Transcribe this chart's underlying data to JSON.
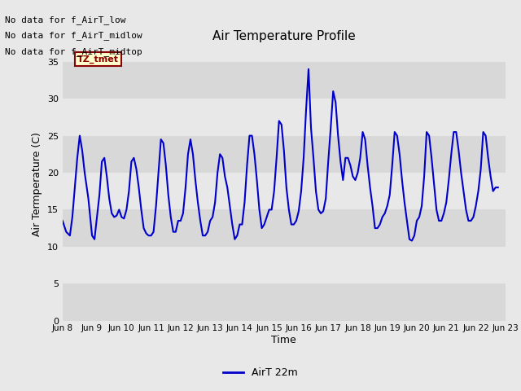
{
  "title": "Air Temperature Profile",
  "xlabel": "Time",
  "ylabel": "Air Termperature (C)",
  "ylim": [
    0,
    37
  ],
  "yticks": [
    0,
    5,
    10,
    15,
    20,
    25,
    30,
    35
  ],
  "line_color": "#0000cc",
  "line_width": 1.5,
  "fig_bg_color": "#e8e8e8",
  "plot_bg_color": "#e8e8e8",
  "band_colors": [
    "#d8d8d8",
    "#e8e8e8"
  ],
  "legend_label": "AirT 22m",
  "no_data_texts": [
    "No data for f_AirT_low",
    "No data for f_AirT_midlow",
    "No data for f_AirT_midtop"
  ],
  "tz_label": "TZ_tmet",
  "x_tick_labels": [
    "Jun 8",
    "Jun 9",
    "Jun 10",
    "Jun 11",
    "Jun 12",
    "Jun 13",
    "Jun 14",
    "Jun 15",
    "Jun 16",
    "Jun 17",
    "Jun 18",
    "Jun 19",
    "Jun 20",
    "Jun 21",
    "Jun 22",
    "Jun 23"
  ],
  "time_data": [
    0.0,
    0.125,
    0.25,
    0.333,
    0.417,
    0.5,
    0.583,
    0.667,
    0.75,
    0.875,
    1.0,
    1.083,
    1.167,
    1.25,
    1.333,
    1.417,
    1.5,
    1.583,
    1.667,
    1.75,
    1.833,
    1.917,
    2.0,
    2.083,
    2.167,
    2.25,
    2.333,
    2.417,
    2.5,
    2.583,
    2.667,
    2.75,
    2.833,
    2.917,
    3.0,
    3.083,
    3.167,
    3.25,
    3.333,
    3.417,
    3.5,
    3.583,
    3.667,
    3.75,
    3.833,
    3.917,
    4.0,
    4.083,
    4.167,
    4.25,
    4.333,
    4.417,
    4.5,
    4.583,
    4.667,
    4.75,
    4.833,
    4.917,
    5.0,
    5.083,
    5.167,
    5.25,
    5.333,
    5.417,
    5.5,
    5.583,
    5.667,
    5.75,
    5.833,
    5.917,
    6.0,
    6.083,
    6.167,
    6.25,
    6.333,
    6.417,
    6.5,
    6.583,
    6.667,
    6.75,
    6.833,
    6.917,
    7.0,
    7.083,
    7.167,
    7.25,
    7.333,
    7.417,
    7.5,
    7.583,
    7.667,
    7.75,
    7.833,
    7.917,
    8.0,
    8.083,
    8.167,
    8.25,
    8.333,
    8.417,
    8.5,
    8.583,
    8.667,
    8.75,
    8.833,
    8.917,
    9.0,
    9.083,
    9.167,
    9.25,
    9.333,
    9.417,
    9.5,
    9.583,
    9.667,
    9.75,
    9.833,
    9.917,
    10.0,
    10.083,
    10.167,
    10.25,
    10.333,
    10.417,
    10.5,
    10.583,
    10.667,
    10.75,
    10.833,
    10.917,
    11.0,
    11.083,
    11.167,
    11.25,
    11.333,
    11.417,
    11.5,
    11.583,
    11.667,
    11.75,
    11.833,
    11.917,
    12.0,
    12.083,
    12.167,
    12.25,
    12.333,
    12.417,
    12.5,
    12.583,
    12.667,
    12.75,
    12.833,
    12.917,
    13.0,
    13.083,
    13.167,
    13.25,
    13.333,
    13.417,
    13.5,
    13.583,
    13.667,
    13.75,
    13.833,
    13.917,
    14.0,
    14.083,
    14.167,
    14.25,
    14.333,
    14.417,
    14.5,
    14.583,
    14.667,
    14.75
  ],
  "temp_data": [
    13.5,
    12.0,
    11.5,
    14.0,
    18.0,
    22.0,
    25.0,
    23.0,
    20.0,
    16.5,
    11.5,
    11.0,
    14.0,
    17.0,
    21.5,
    22.0,
    19.5,
    16.5,
    14.5,
    14.0,
    14.2,
    15.0,
    14.0,
    13.8,
    15.0,
    17.5,
    21.5,
    22.0,
    20.5,
    18.0,
    15.0,
    12.5,
    11.8,
    11.5,
    11.5,
    12.0,
    15.5,
    20.0,
    24.5,
    24.0,
    21.0,
    17.0,
    14.0,
    12.0,
    12.0,
    13.5,
    13.5,
    14.5,
    18.0,
    22.5,
    24.5,
    22.5,
    19.0,
    16.0,
    13.5,
    11.5,
    11.5,
    12.0,
    13.5,
    14.0,
    16.0,
    20.0,
    22.5,
    22.0,
    19.5,
    18.0,
    15.5,
    13.0,
    11.0,
    11.5,
    13.0,
    13.0,
    16.0,
    21.0,
    25.0,
    25.0,
    22.5,
    19.0,
    15.0,
    12.5,
    13.0,
    14.0,
    15.0,
    15.0,
    17.5,
    22.0,
    27.0,
    26.5,
    23.0,
    18.0,
    15.0,
    13.0,
    13.0,
    13.5,
    14.8,
    17.5,
    22.0,
    28.5,
    34.0,
    26.0,
    22.0,
    17.5,
    15.0,
    14.5,
    14.8,
    16.5,
    21.5,
    26.0,
    31.0,
    29.5,
    25.0,
    21.5,
    19.0,
    22.0,
    22.0,
    21.0,
    19.5,
    19.0,
    20.0,
    22.0,
    25.5,
    24.5,
    21.0,
    18.0,
    15.5,
    12.5,
    12.5,
    13.0,
    14.0,
    14.5,
    15.5,
    17.0,
    21.0,
    25.5,
    25.0,
    22.5,
    19.0,
    16.0,
    13.5,
    11.0,
    10.8,
    11.5,
    13.5,
    14.0,
    15.5,
    19.5,
    25.5,
    25.0,
    22.0,
    18.5,
    15.0,
    13.5,
    13.5,
    14.5,
    16.0,
    19.0,
    22.5,
    25.5,
    25.5,
    23.0,
    20.0,
    17.5,
    15.0,
    13.5,
    13.5,
    14.0,
    15.5,
    17.5,
    20.5,
    25.5,
    25.0,
    22.0,
    19.5,
    17.5,
    18.0,
    18.0
  ]
}
